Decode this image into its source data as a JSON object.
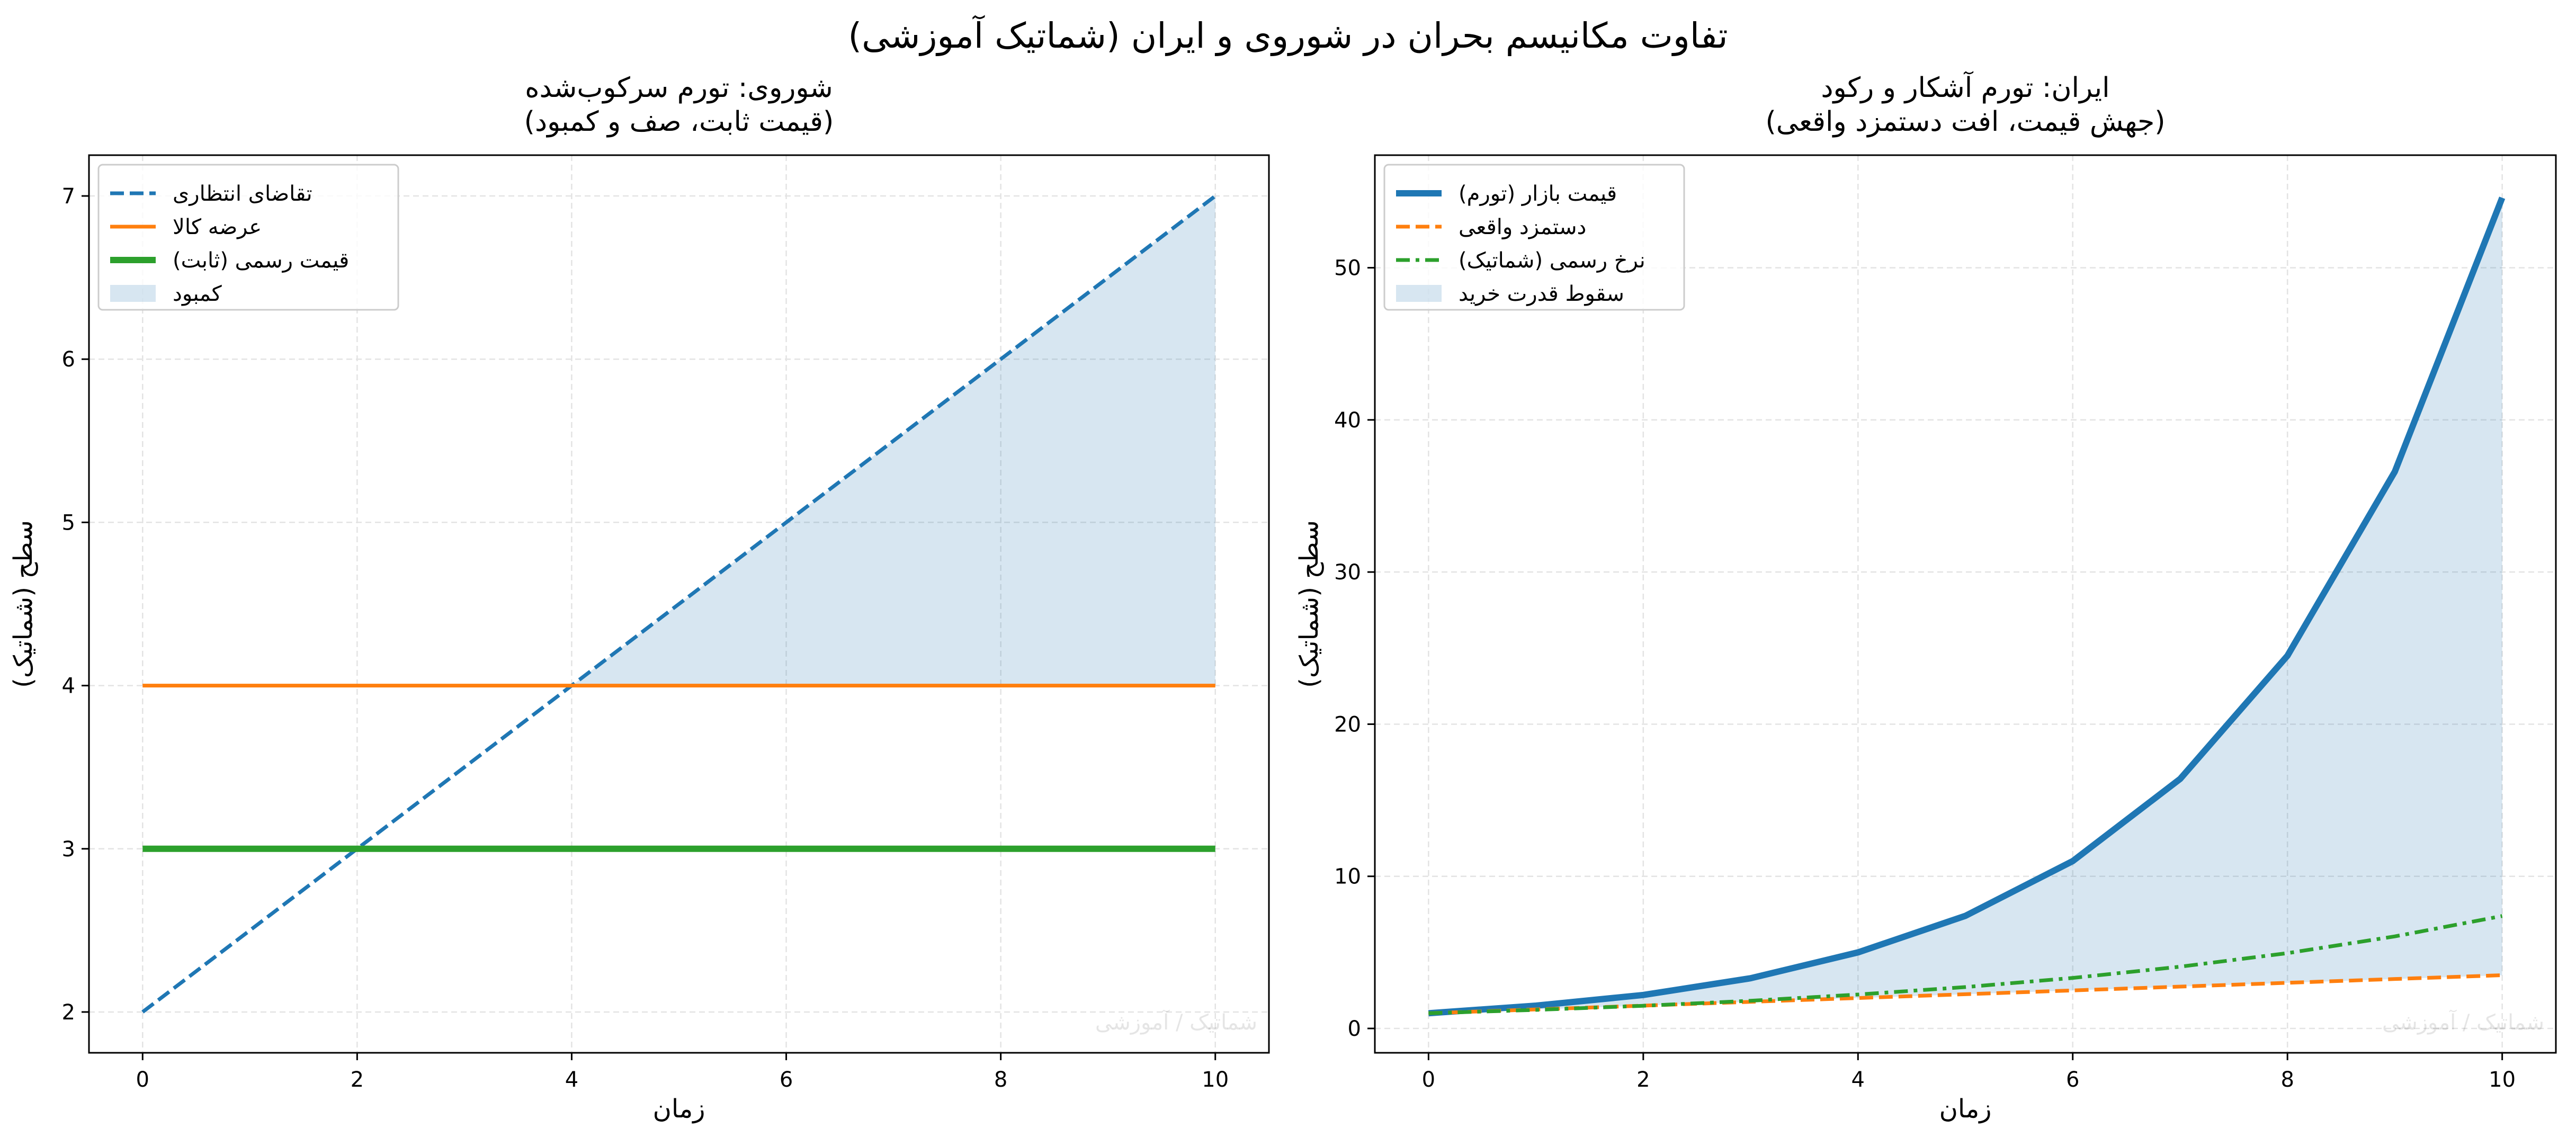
{
  "figure": {
    "suptitle": "تفاوت مکانیسم بحران در شوروی و ایران (شماتیک آموزشی)"
  },
  "chart_data": [
    {
      "type": "line",
      "title": "شوروی: تورم سرکوب‌شده",
      "subtitle": "(قیمت ثابت، صف و کمبود)",
      "xlabel": "زمان",
      "ylabel": "سطح (شماتیک)",
      "xlim": [
        -0.5,
        10.5
      ],
      "ylim": [
        1.75,
        7.25
      ],
      "xticks": [
        0,
        2,
        4,
        6,
        8,
        10
      ],
      "yticks": [
        2,
        3,
        4,
        5,
        6,
        7
      ],
      "grid": true,
      "legend_position": "upper-left",
      "watermark": "شماتیک / آموزشی",
      "x": [
        0,
        1,
        2,
        3,
        4,
        5,
        6,
        7,
        8,
        9,
        10
      ],
      "series": [
        {
          "name": "تقاضای انتظاری",
          "color": "#1f77b4",
          "style": "dashed",
          "values": [
            2,
            2.5,
            3,
            3.5,
            4,
            4.5,
            5,
            5.5,
            6,
            6.5,
            7
          ]
        },
        {
          "name": "عرضه کالا",
          "color": "#ff7f0e",
          "style": "solid",
          "values": [
            4,
            4,
            4,
            4,
            4,
            4,
            4,
            4,
            4,
            4,
            4
          ]
        },
        {
          "name": "قیمت رسمی (ثابت)",
          "color": "#2ca02c",
          "style": "solid-thick",
          "values": [
            3,
            3,
            3,
            3,
            3,
            3,
            3,
            3,
            3,
            3,
            3
          ]
        }
      ],
      "fill": {
        "name": "کمبود",
        "color": "#1f77b4",
        "between": [
          "عرضه کالا",
          "تقاضای انتظاری"
        ],
        "where": "upper>lower"
      }
    },
    {
      "type": "line",
      "title": "ایران: تورم آشکار و رکود",
      "subtitle": "(جهش قیمت، افت دستمزد واقعی)",
      "xlabel": "زمان",
      "ylabel": "سطح (شماتیک)",
      "xlim": [
        -0.5,
        10.5
      ],
      "ylim": [
        -1.6,
        57.4
      ],
      "xticks": [
        0,
        2,
        4,
        6,
        8,
        10
      ],
      "yticks": [
        0,
        10,
        20,
        30,
        40,
        50
      ],
      "grid": true,
      "legend_position": "upper-left",
      "watermark": "شماتیک / آموزشی",
      "x": [
        0,
        1,
        2,
        3,
        4,
        5,
        6,
        7,
        8,
        9,
        10
      ],
      "series": [
        {
          "name": "قیمت بازار (تورم)",
          "color": "#1f77b4",
          "style": "solid-thick",
          "values": [
            1.0,
            1.5,
            2.2,
            3.3,
            5.0,
            7.4,
            11.0,
            16.4,
            24.5,
            36.6,
            54.6
          ]
        },
        {
          "name": "دستمزد واقعی",
          "color": "#ff7f0e",
          "style": "dashed",
          "values": [
            1.0,
            1.25,
            1.5,
            1.75,
            2.0,
            2.25,
            2.5,
            2.75,
            3.0,
            3.25,
            3.5
          ]
        },
        {
          "name": "نرخ رسمی (شماتیک)",
          "color": "#2ca02c",
          "style": "dashdot",
          "values": [
            1.0,
            1.22,
            1.49,
            1.82,
            2.23,
            2.72,
            3.32,
            4.06,
            4.95,
            6.05,
            7.39
          ]
        }
      ],
      "fill": {
        "name": "سقوط قدرت خرید",
        "color": "#1f77b4",
        "between": [
          "دستمزد واقعی",
          "قیمت بازار (تورم)"
        ],
        "where": "all"
      }
    }
  ]
}
